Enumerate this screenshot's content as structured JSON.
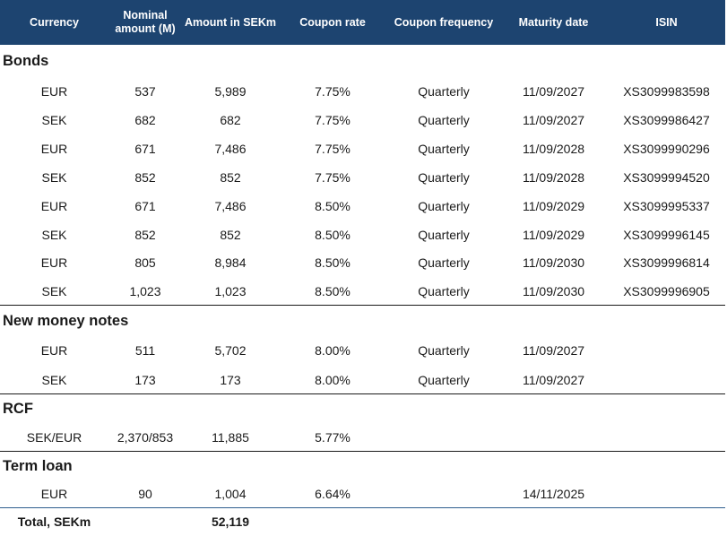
{
  "columns": [
    "Currency",
    "Nominal\namount (M)",
    "Amount in SEKm",
    "Coupon rate",
    "Coupon frequency",
    "Maturity date",
    "ISIN"
  ],
  "sections": [
    {
      "title": "Bonds",
      "rows": [
        [
          "EUR",
          "537",
          "5,989",
          "7.75%",
          "Quarterly",
          "11/09/2027",
          "XS3099983598"
        ],
        [
          "SEK",
          "682",
          "682",
          "7.75%",
          "Quarterly",
          "11/09/2027",
          "XS3099986427"
        ],
        [
          "EUR",
          "671",
          "7,486",
          "7.75%",
          "Quarterly",
          "11/09/2028",
          "XS3099990296"
        ],
        [
          "SEK",
          "852",
          "852",
          "7.75%",
          "Quarterly",
          "11/09/2028",
          "XS3099994520"
        ],
        [
          "EUR",
          "671",
          "7,486",
          "8.50%",
          "Quarterly",
          "11/09/2029",
          "XS3099995337"
        ],
        [
          "SEK",
          "852",
          "852",
          "8.50%",
          "Quarterly",
          "11/09/2029",
          "XS3099996145"
        ],
        [
          "EUR",
          "805",
          "8,984",
          "8.50%",
          "Quarterly",
          "11/09/2030",
          "XS3099996814"
        ],
        [
          "SEK",
          "1,023",
          "1,023",
          "8.50%",
          "Quarterly",
          "11/09/2030",
          "XS3099996905"
        ]
      ]
    },
    {
      "title": "New money notes",
      "rows": [
        [
          "EUR",
          "511",
          "5,702",
          "8.00%",
          "Quarterly",
          "11/09/2027",
          ""
        ],
        [
          "SEK",
          "173",
          "173",
          "8.00%",
          "Quarterly",
          "11/09/2027",
          ""
        ]
      ]
    },
    {
      "title": "RCF",
      "rows": [
        [
          "SEK/EUR",
          "2,370/853",
          "11,885",
          "5.77%",
          "",
          "",
          ""
        ]
      ]
    },
    {
      "title": "Term loan",
      "rows": [
        [
          "EUR",
          "90",
          "1,004",
          "6.64%",
          "",
          "14/11/2025",
          ""
        ]
      ]
    }
  ],
  "total": {
    "label": "Total, SEKm",
    "value": "52,119"
  },
  "colors": {
    "header_bg": "#1d4470",
    "header_text": "#ffffff",
    "total_rule": "#2f5e8e"
  }
}
